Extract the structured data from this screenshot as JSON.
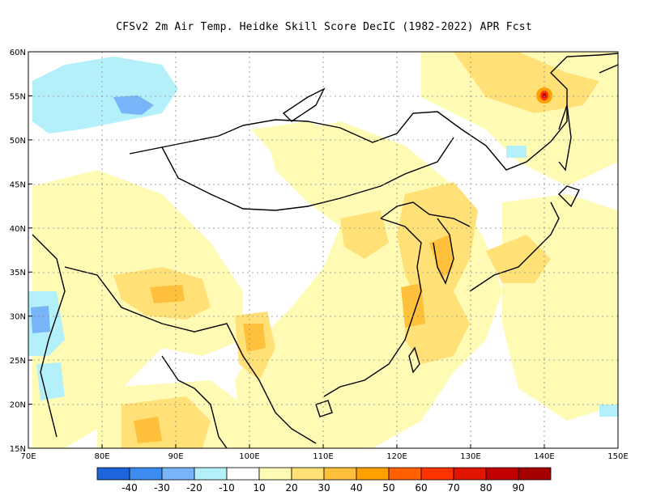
{
  "title": "CFSv2  2m Air Temp. Heidke Skill Score DecIC (1982-2022) APR Fcst",
  "axes": {
    "lon_labels": [
      "70E",
      "80E",
      "90E",
      "100E",
      "110E",
      "120E",
      "130E",
      "140E",
      "150E"
    ],
    "lat_labels": [
      "15N",
      "20N",
      "25N",
      "30N",
      "35N",
      "40N",
      "45N",
      "50N",
      "55N",
      "60N"
    ]
  },
  "colorbar": {
    "colors": [
      "#1e64dc",
      "#3c8cf0",
      "#78b4f8",
      "#b4f0fa",
      "#ffffff",
      "#fffab4",
      "#ffe178",
      "#ffc03c",
      "#ffa000",
      "#ff6000",
      "#ff3200",
      "#e11400",
      "#c00000",
      "#a50000"
    ],
    "labels": [
      "-40",
      "-30",
      "-20",
      "-10",
      "10",
      "20",
      "30",
      "40",
      "50",
      "60",
      "70",
      "80",
      "90"
    ]
  },
  "colors": {
    "land_border": "#000000",
    "grid": "#888888"
  }
}
